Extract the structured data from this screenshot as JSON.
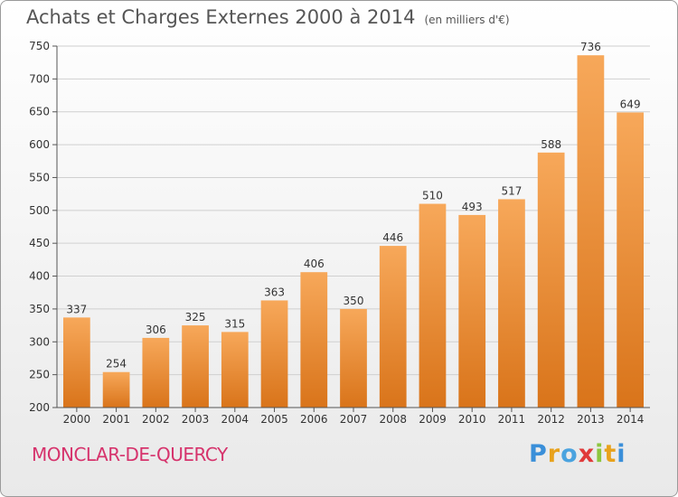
{
  "header": {
    "title": "Achats et Charges Externes 2000 à 2014",
    "unit": "(en milliers d'€)"
  },
  "location": "MONCLAR-DE-QUERCY",
  "logo": {
    "text": "Proxiti",
    "colors": [
      "#3a8fd9",
      "#e8a21c",
      "#4aa3df",
      "#e03a3a",
      "#8cc63f",
      "#e8a21c",
      "#3a8fd9"
    ]
  },
  "chart_data": {
    "type": "bar",
    "categories": [
      "2000",
      "2001",
      "2002",
      "2003",
      "2004",
      "2005",
      "2006",
      "2007",
      "2008",
      "2009",
      "2010",
      "2011",
      "2012",
      "2013",
      "2014"
    ],
    "values": [
      337,
      254,
      306,
      325,
      315,
      363,
      406,
      350,
      446,
      510,
      493,
      517,
      588,
      736,
      649
    ],
    "ylim": [
      200,
      750
    ],
    "yticks": [
      200,
      250,
      300,
      350,
      400,
      450,
      500,
      550,
      600,
      650,
      700,
      750
    ],
    "grid": true,
    "bar_color": "#f0923a"
  }
}
